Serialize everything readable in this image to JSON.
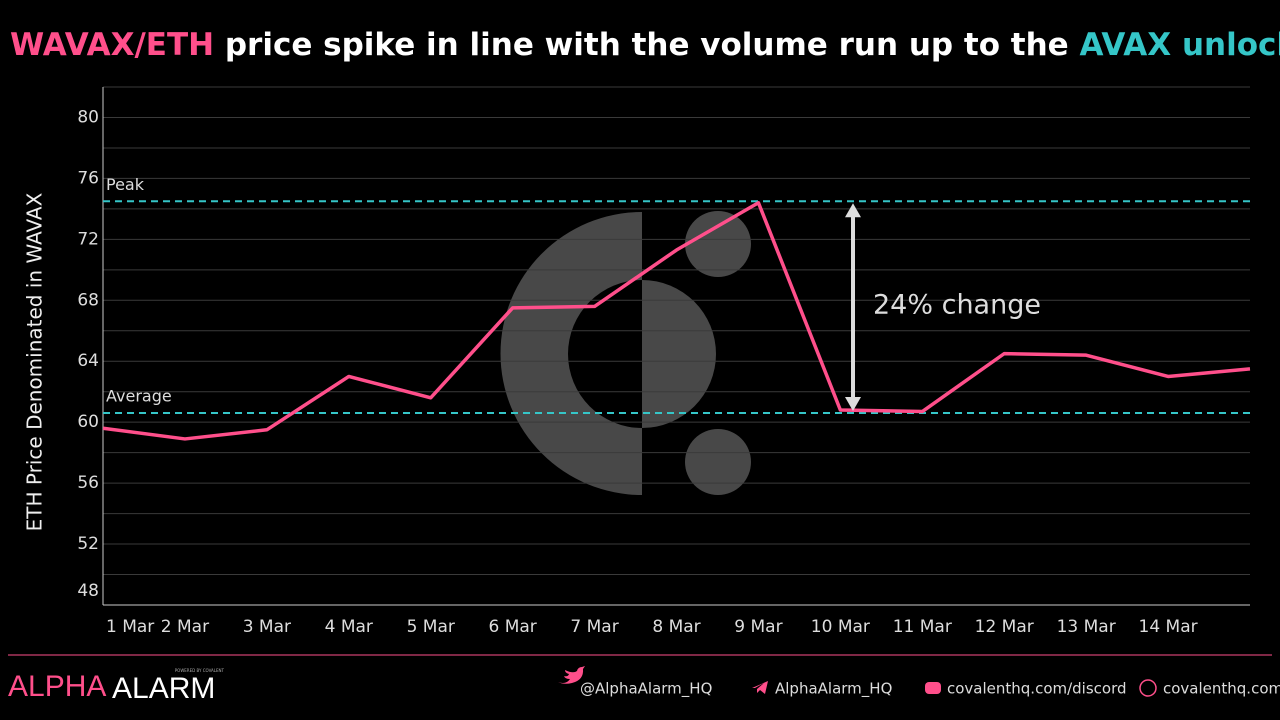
{
  "chart_data": {
    "type": "line",
    "title_parts": [
      "WAVAX/ETH",
      " price spike in line with the volume run up to the ",
      "AVAX unlock",
      "."
    ],
    "title_colors": [
      "#ff4f8b",
      "#ffffff",
      "#35c6c8",
      "#ffffff"
    ],
    "y_label": "ETH Price Denominated in WAVAX",
    "categories": [
      "1 Mar",
      "2 Mar",
      "3 Mar",
      "4 Mar",
      "5 Mar",
      "6 Mar",
      "7 Mar",
      "8 Mar",
      "9 Mar",
      "10 Mar",
      "11 Mar",
      "12 Mar",
      "13 Mar",
      "14 Mar",
      null
    ],
    "series": [
      {
        "name": "WAVAX/ETH",
        "color": "#ff4f8b",
        "values": [
          59.6,
          58.9,
          59.5,
          63.0,
          61.6,
          67.5,
          67.6,
          71.3,
          74.4,
          60.8,
          60.7,
          64.5,
          64.4,
          63.0,
          63.5
        ]
      }
    ],
    "ylim": [
      48,
      82
    ],
    "yticks": [
      48,
      52,
      56,
      60,
      64,
      68,
      72,
      76,
      80
    ],
    "minor_yticks": [
      50,
      54,
      58,
      62,
      66,
      70,
      74,
      78,
      82
    ],
    "grid": true,
    "reference_lines": [
      {
        "label": "Peak",
        "value": 74.5,
        "color": "#35c6c8"
      },
      {
        "label": "Average",
        "value": 60.6,
        "color": "#35c6c8"
      }
    ],
    "annotation": "24% change"
  },
  "footer": {
    "brand_1": "ALPHA",
    "brand_2": "ALARM",
    "powered": "POWERED BY COVALENT",
    "links": [
      "@AlphaAlarm_HQ",
      "AlphaAlarm_HQ",
      "covalenthq.com/discord",
      "covalenthq.com"
    ]
  }
}
